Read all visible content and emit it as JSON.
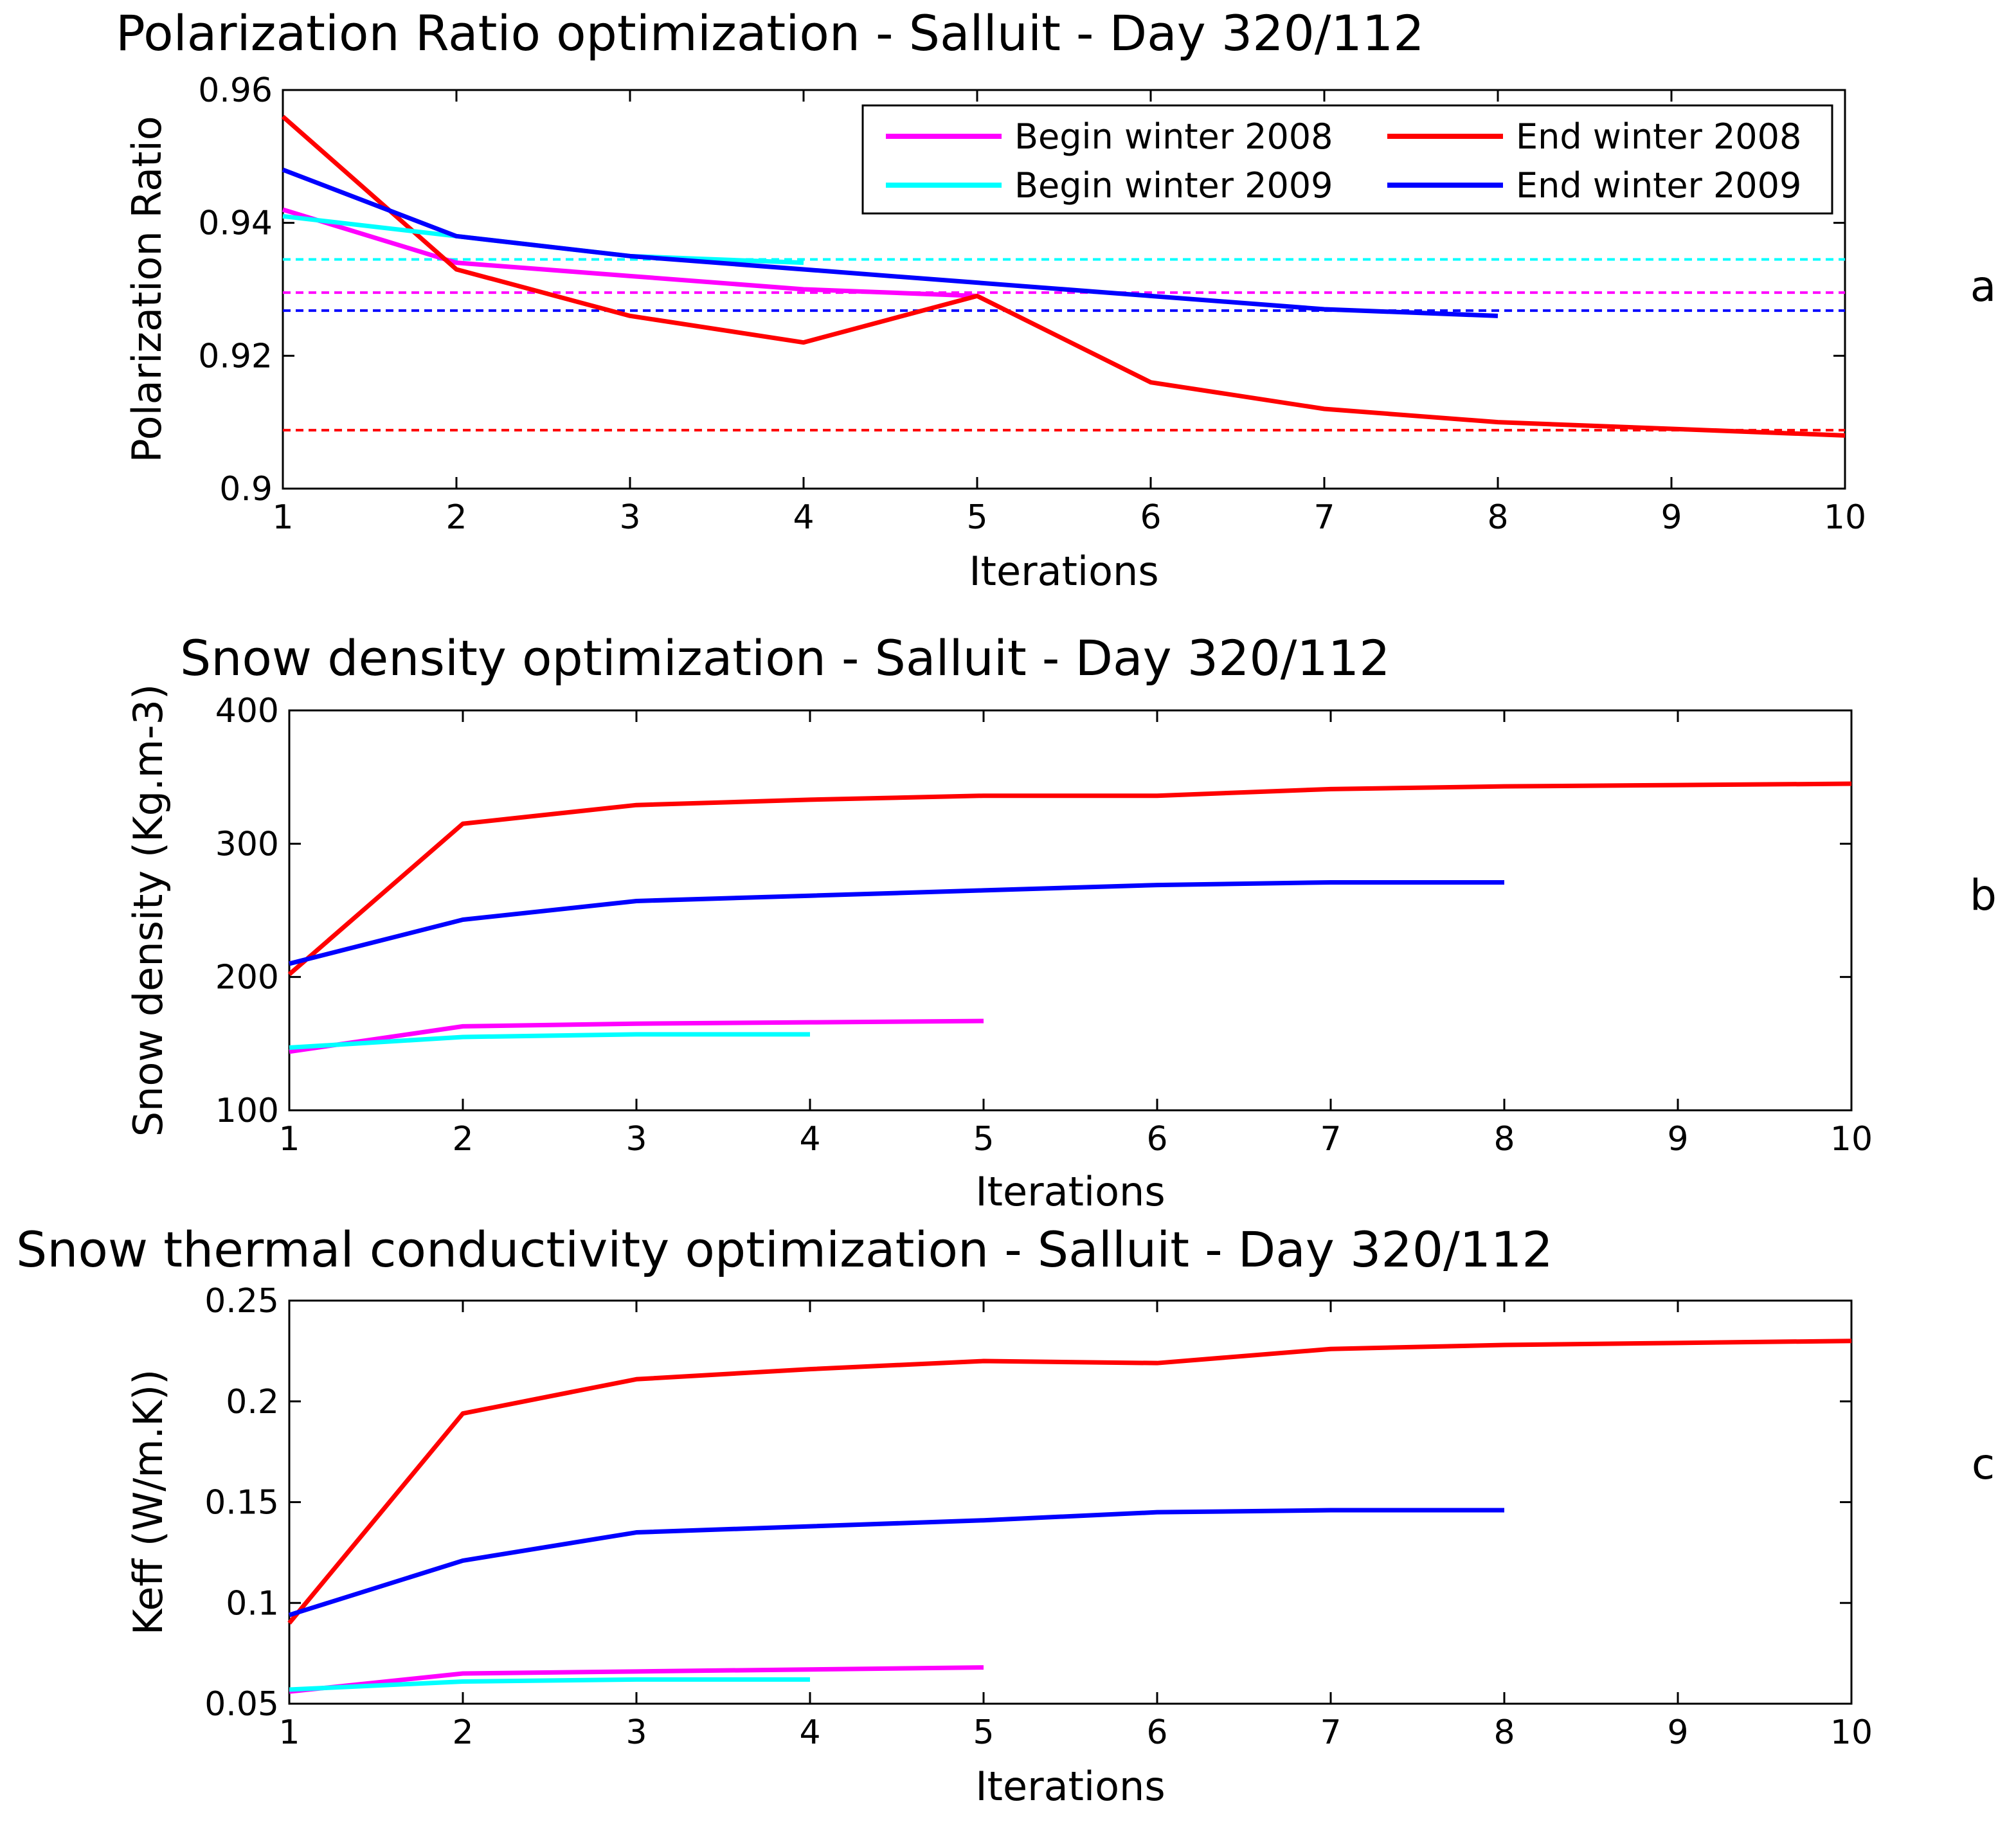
{
  "colors": {
    "Begin winter 2008": "#ff00ff",
    "Begin winter 2009": "#00ffff",
    "End winter 2008": "#ff0000",
    "End winter 2009": "#0000ff"
  },
  "chart_data": [
    {
      "type": "line",
      "panel": "a",
      "title": "Polarization Ratio optimization - Salluit - Day 320/112",
      "xlabel": "Iterations",
      "ylabel": "Polarization Ratio",
      "xlim": [
        1,
        10
      ],
      "ylim": [
        0.9,
        0.96
      ],
      "xticks": [
        1,
        2,
        3,
        4,
        5,
        6,
        7,
        8,
        9,
        10
      ],
      "yticks": [
        0.9,
        0.92,
        0.94,
        0.96
      ],
      "ytick_labels": [
        "0.9",
        "0.92",
        "0.94",
        "0.96"
      ],
      "legend": "top-right",
      "series": [
        {
          "name": "Begin winter 2008",
          "x": [
            1,
            2,
            3,
            4,
            5
          ],
          "y": [
            0.942,
            0.934,
            0.932,
            0.93,
            0.929
          ]
        },
        {
          "name": "End winter 2008",
          "x": [
            1,
            2,
            3,
            4,
            5,
            6,
            7,
            8,
            9,
            10
          ],
          "y": [
            0.956,
            0.933,
            0.926,
            0.922,
            0.929,
            0.916,
            0.912,
            0.91,
            0.909,
            0.908
          ]
        },
        {
          "name": "Begin winter 2009",
          "x": [
            1,
            2,
            3,
            4
          ],
          "y": [
            0.941,
            0.938,
            0.935,
            0.934
          ]
        },
        {
          "name": "End winter 2009",
          "x": [
            1,
            2,
            3,
            4,
            5,
            6,
            7,
            8
          ],
          "y": [
            0.948,
            0.938,
            0.935,
            0.933,
            0.931,
            0.929,
            0.927,
            0.926
          ]
        }
      ],
      "reference_lines": [
        {
          "name": "Begin winter 2009",
          "y": 0.9345,
          "x": [
            1,
            10
          ]
        },
        {
          "name": "Begin winter 2008",
          "y": 0.9295,
          "x": [
            1,
            10
          ]
        },
        {
          "name": "End winter 2009",
          "y": 0.9268,
          "x": [
            1,
            10
          ]
        },
        {
          "name": "End winter 2008",
          "y": 0.9088,
          "x": [
            1,
            10
          ]
        }
      ],
      "legend_entries": [
        {
          "name": "Begin winter 2008",
          "label": "Begin winter 2008"
        },
        {
          "name": "End winter 2008",
          "label": "End winter 2008"
        },
        {
          "name": "Begin winter 2009",
          "label": "Begin winter 2009"
        },
        {
          "name": "End winter 2009",
          "label": "End winter 2009"
        }
      ]
    },
    {
      "type": "line",
      "panel": "b",
      "title": "Snow density optimization - Salluit - Day 320/112",
      "xlabel": "Iterations",
      "ylabel": "Snow density (Kg.m-3)",
      "xlim": [
        1,
        10
      ],
      "ylim": [
        100,
        400
      ],
      "xticks": [
        1,
        2,
        3,
        4,
        5,
        6,
        7,
        8,
        9,
        10
      ],
      "yticks": [
        100,
        200,
        300,
        400
      ],
      "ytick_labels": [
        "100",
        "200",
        "300",
        "400"
      ],
      "series": [
        {
          "name": "Begin winter 2008",
          "x": [
            1,
            2,
            3,
            4,
            5
          ],
          "y": [
            144,
            163,
            165,
            166,
            167
          ]
        },
        {
          "name": "End winter 2008",
          "x": [
            1,
            2,
            3,
            4,
            5,
            6,
            7,
            8,
            9,
            10
          ],
          "y": [
            202,
            315,
            329,
            333,
            336,
            336,
            341,
            343,
            344,
            345
          ]
        },
        {
          "name": "Begin winter 2009",
          "x": [
            1,
            2,
            3,
            4
          ],
          "y": [
            147,
            155,
            157,
            157
          ]
        },
        {
          "name": "End winter 2009",
          "x": [
            1,
            2,
            3,
            4,
            5,
            6,
            7,
            8
          ],
          "y": [
            210,
            243,
            257,
            261,
            265,
            269,
            271,
            271
          ]
        }
      ]
    },
    {
      "type": "line",
      "panel": "c",
      "title": "Snow thermal conductivity optimization - Salluit - Day 320/112",
      "xlabel": "Iterations",
      "ylabel": "Keff (W/m.K))",
      "xlim": [
        1,
        10
      ],
      "ylim": [
        0.05,
        0.25
      ],
      "xticks": [
        1,
        2,
        3,
        4,
        5,
        6,
        7,
        8,
        9,
        10
      ],
      "yticks": [
        0.05,
        0.1,
        0.15,
        0.2,
        0.25
      ],
      "ytick_labels": [
        "0.05",
        "0.1",
        "0.15",
        "0.2",
        "0.25"
      ],
      "series": [
        {
          "name": "Begin winter 2008",
          "x": [
            1,
            2,
            3,
            4,
            5
          ],
          "y": [
            0.056,
            0.065,
            0.066,
            0.067,
            0.068
          ]
        },
        {
          "name": "End winter 2008",
          "x": [
            1,
            2,
            3,
            4,
            5,
            6,
            7,
            8,
            9,
            10
          ],
          "y": [
            0.09,
            0.194,
            0.211,
            0.216,
            0.22,
            0.219,
            0.226,
            0.228,
            0.229,
            0.23
          ]
        },
        {
          "name": "Begin winter 2009",
          "x": [
            1,
            2,
            3,
            4
          ],
          "y": [
            0.057,
            0.061,
            0.062,
            0.062
          ]
        },
        {
          "name": "End winter 2009",
          "x": [
            1,
            2,
            3,
            4,
            5,
            6,
            7,
            8
          ],
          "y": [
            0.094,
            0.121,
            0.135,
            0.138,
            0.141,
            0.145,
            0.146,
            0.146
          ]
        }
      ]
    }
  ]
}
